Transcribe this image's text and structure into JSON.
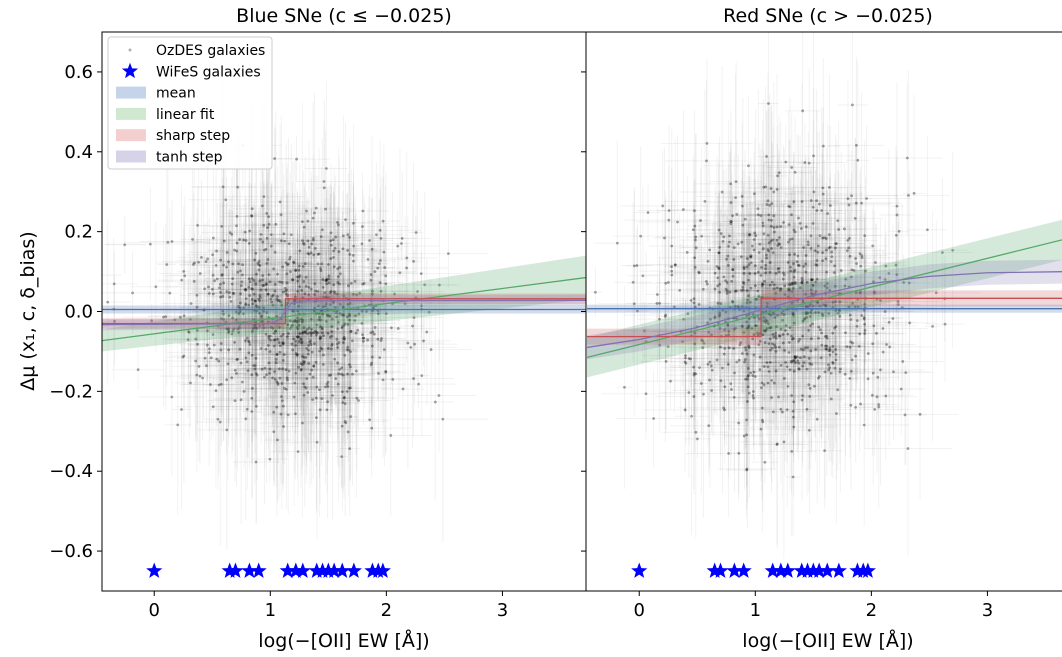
{
  "chart_data": [
    {
      "type": "scatter",
      "title": "Blue SNe (c ≤ −0.025)",
      "xlabel": "log(−[OII] EW [Å])",
      "ylabel": "Δμ (x₁, c, δ_bias)",
      "xlim": [
        -0.45,
        3.72
      ],
      "ylim": [
        -0.7,
        0.7
      ],
      "xticks": [
        0,
        1,
        2,
        3
      ],
      "yticks": [
        -0.6,
        -0.4,
        -0.2,
        0.0,
        0.2,
        0.4,
        0.6
      ],
      "xtick_labels": [
        "0",
        "1",
        "2",
        "3"
      ],
      "ytick_labels": [
        "−0.6",
        "−0.4",
        "−0.2",
        "0.0",
        "0.2",
        "0.4",
        "0.6"
      ],
      "legend": {
        "placement": "upper-left",
        "entries": [
          {
            "label": "OzDES galaxies",
            "marker": "point",
            "color": "#7f7f7f"
          },
          {
            "label": "WiFeS galaxies",
            "marker": "star",
            "color": "#0000ff"
          },
          {
            "label": "mean",
            "marker": "band",
            "color": "#c6d4ea"
          },
          {
            "label": "linear fit",
            "marker": "band",
            "color": "#cfe8cf"
          },
          {
            "label": "sharp step",
            "marker": "band",
            "color": "#f3cfcf"
          },
          {
            "label": "tanh step",
            "marker": "band",
            "color": "#d6d3e8"
          }
        ]
      },
      "ozdes_cloud": {
        "count": 900,
        "x_center": 1.2,
        "x_spread": 0.5,
        "y_center": 0.0,
        "y_spread": 0.13,
        "color": "#000000"
      },
      "wifes_stars": {
        "y": -0.65,
        "x": [
          0.0,
          0.65,
          0.7,
          0.82,
          0.9,
          1.15,
          1.22,
          1.28,
          1.4,
          1.45,
          1.5,
          1.55,
          1.62,
          1.72,
          1.88,
          1.93,
          1.97
        ],
        "color": "#0000ff"
      },
      "models": {
        "mean": {
          "y": 0.005,
          "band": 0.01,
          "color": "#4c72b0"
        },
        "linear_fit": {
          "x": [
            -0.45,
            3.72
          ],
          "y": [
            -0.073,
            0.085
          ],
          "band_lower": [
            -0.1,
            0.03
          ],
          "band_upper": [
            -0.045,
            0.14
          ],
          "color": "#55a868"
        },
        "sharp_step": {
          "step_x": 1.13,
          "low": -0.03,
          "high": 0.032,
          "band": 0.013,
          "color": "#c44e52"
        },
        "tanh_step": {
          "x": [
            -0.45,
            1.0,
            1.08,
            1.13,
            1.18,
            1.3,
            3.72
          ],
          "y": [
            -0.033,
            -0.03,
            -0.02,
            0.0,
            0.02,
            0.027,
            0.028
          ],
          "band": 0.014,
          "color": "#8172b2"
        }
      }
    },
    {
      "type": "scatter",
      "title": "Red SNe (c > −0.025)",
      "xlabel": "log(−[OII] EW [Å])",
      "xlim": [
        -0.45,
        3.72
      ],
      "ylim": [
        -0.7,
        0.7
      ],
      "xticks": [
        0,
        1,
        2,
        3
      ],
      "xtick_labels": [
        "0",
        "1",
        "2",
        "3"
      ],
      "ozdes_cloud": {
        "count": 900,
        "x_center": 1.2,
        "x_spread": 0.5,
        "y_center": 0.02,
        "y_spread": 0.15,
        "color": "#000000"
      },
      "wifes_stars": {
        "y": -0.65,
        "x": [
          0.0,
          0.65,
          0.7,
          0.82,
          0.9,
          1.15,
          1.22,
          1.28,
          1.4,
          1.45,
          1.5,
          1.55,
          1.62,
          1.72,
          1.88,
          1.93,
          1.97
        ],
        "color": "#0000ff"
      },
      "models": {
        "mean": {
          "y": 0.007,
          "band": 0.01,
          "color": "#4c72b0"
        },
        "linear_fit": {
          "x": [
            -0.45,
            3.72
          ],
          "y": [
            -0.115,
            0.185
          ],
          "band_lower": [
            -0.165,
            0.135
          ],
          "band_upper": [
            -0.065,
            0.235
          ],
          "color": "#55a868"
        },
        "sharp_step": {
          "step_x": 1.05,
          "low": -0.063,
          "high": 0.033,
          "band": 0.02,
          "color": "#c44e52"
        },
        "tanh_step": {
          "x": [
            -0.45,
            0.0,
            0.5,
            1.0,
            1.5,
            2.0,
            2.5,
            3.0,
            3.72
          ],
          "y": [
            -0.09,
            -0.07,
            -0.04,
            0.0,
            0.04,
            0.07,
            0.088,
            0.097,
            0.1
          ],
          "band": 0.03,
          "color": "#8172b2"
        }
      }
    }
  ]
}
